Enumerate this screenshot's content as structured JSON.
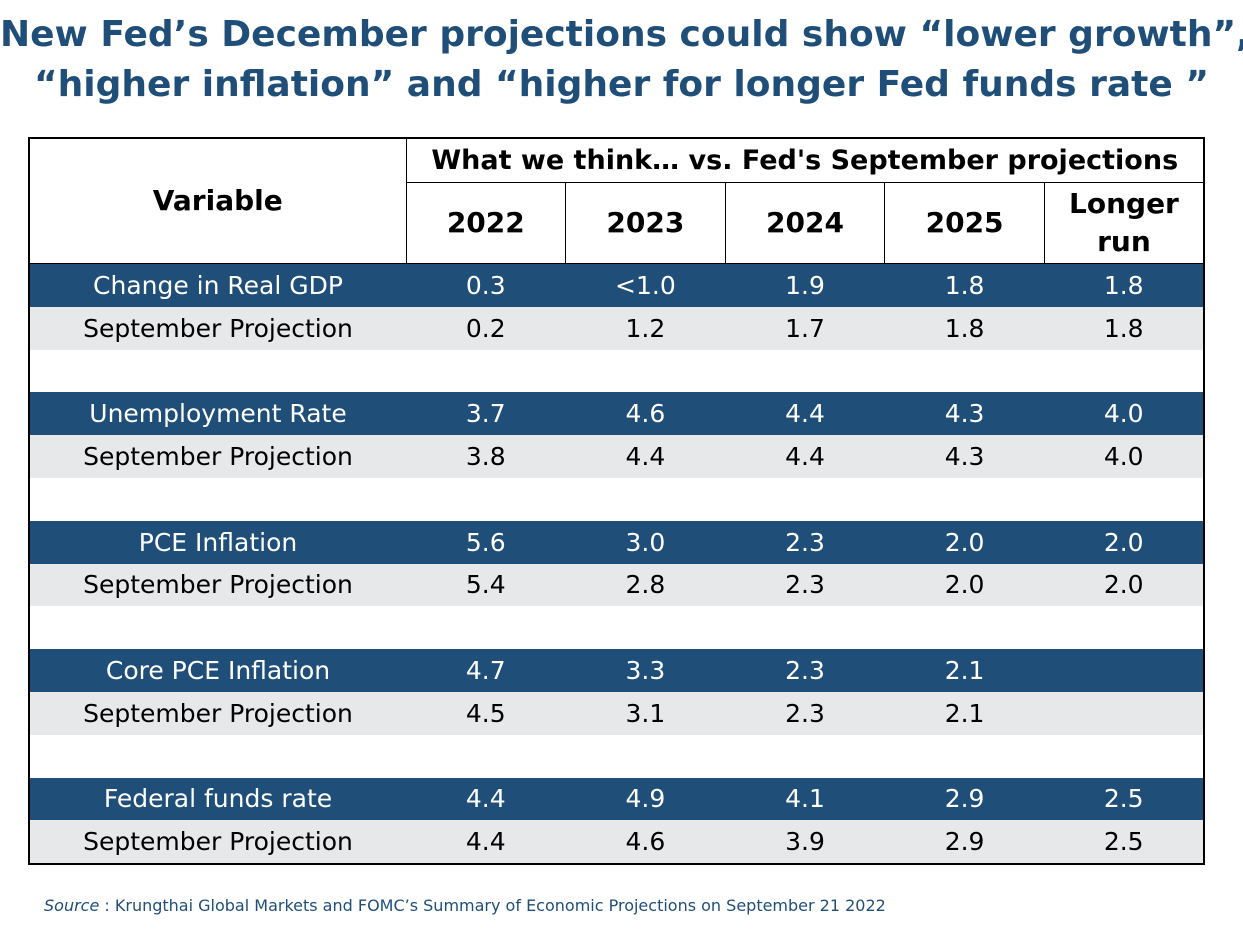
{
  "title": {
    "line1": "New Fed’s December projections could show “lower growth”,",
    "line2": "“higher inflation” and “higher for longer Fed funds rate ”"
  },
  "chart_data": {
    "type": "table",
    "row_header": "Variable",
    "group_header": "What we think… vs. Fed's September projections",
    "columns": [
      "2022",
      "2023",
      "2024",
      "2025",
      "Longer run"
    ],
    "rows": [
      {
        "label": "Change in Real GDP",
        "values": [
          "0.3",
          "<1.0",
          "1.9",
          "1.8",
          "1.8"
        ],
        "september": {
          "label": "September Projection",
          "values": [
            "0.2",
            "1.2",
            "1.7",
            "1.8",
            "1.8"
          ]
        }
      },
      {
        "label": "Unemployment Rate",
        "values": [
          "3.7",
          "4.6",
          "4.4",
          "4.3",
          "4.0"
        ],
        "september": {
          "label": "September Projection",
          "values": [
            "3.8",
            "4.4",
            "4.4",
            "4.3",
            "4.0"
          ]
        }
      },
      {
        "label": "PCE Inflation",
        "values": [
          "5.6",
          "3.0",
          "2.3",
          "2.0",
          "2.0"
        ],
        "september": {
          "label": "September Projection",
          "values": [
            "5.4",
            "2.8",
            "2.3",
            "2.0",
            "2.0"
          ]
        }
      },
      {
        "label": "Core PCE Inflation",
        "values": [
          "4.7",
          "3.3",
          "2.3",
          "2.1",
          ""
        ],
        "september": {
          "label": "September Projection",
          "values": [
            "4.5",
            "3.1",
            "2.3",
            "2.1",
            ""
          ]
        }
      },
      {
        "label": "Federal funds rate",
        "values": [
          "4.4",
          "4.9",
          "4.1",
          "2.9",
          "2.5"
        ],
        "september": {
          "label": "September Projection",
          "values": [
            "4.4",
            "4.6",
            "3.9",
            "2.9",
            "2.5"
          ]
        }
      }
    ]
  },
  "source": {
    "prefix": "Source",
    "text": " : Krungthai Global Markets and FOMC’s Summary of Economic Projections on September 21 2022"
  },
  "colors": {
    "main_row": "#1f4e79",
    "sep_row": "#e7e8ea",
    "title": "#1f4e79"
  }
}
